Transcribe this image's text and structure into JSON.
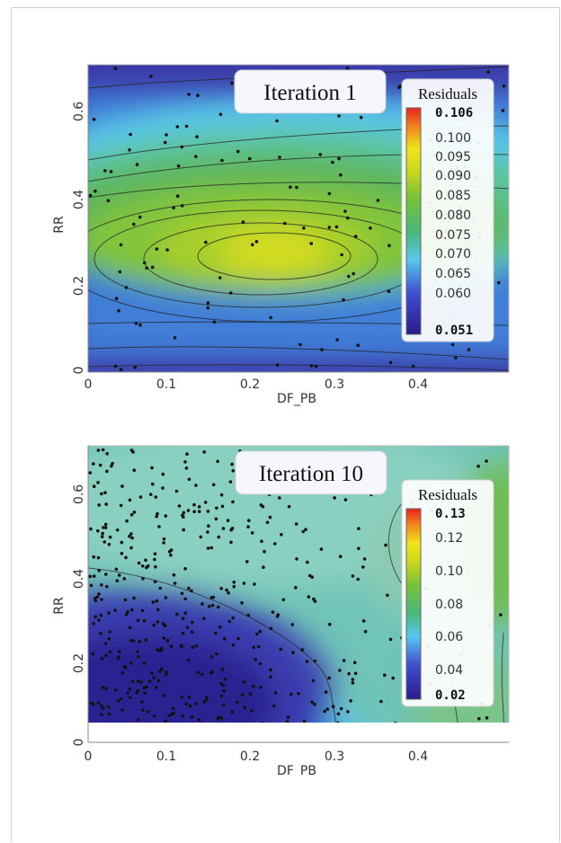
{
  "chart_data": [
    {
      "type": "heatmap",
      "title": "Iteration 1",
      "xlabel": "DF_PB",
      "ylabel": "RR",
      "xlim": [
        0,
        0.5
      ],
      "ylim": [
        0,
        0.7
      ],
      "x_ticks": [
        "0",
        "0.1",
        "0.2",
        "0.3",
        "0.4"
      ],
      "y_ticks": [
        "0",
        "0.2",
        "0.4",
        "0.6"
      ],
      "colorbar": {
        "title": "Residuals",
        "min_label": "0.051",
        "max_label": "0.106",
        "min": 0.051,
        "max": 0.106,
        "ticks": [
          "0.100",
          "0.095",
          "0.090",
          "0.085",
          "0.080",
          "0.075",
          "0.070",
          "0.065",
          "0.060"
        ]
      },
      "peak": {
        "x": 0.23,
        "y": 0.27
      }
    },
    {
      "type": "heatmap",
      "title": "Iteration 10",
      "xlabel": "DF_PB",
      "ylabel": "RR",
      "xlim": [
        0,
        0.5
      ],
      "ylim": [
        0,
        0.7
      ],
      "x_ticks": [
        "0",
        "0.1",
        "0.2",
        "0.3",
        "0.4"
      ],
      "y_ticks": [
        "0",
        "0.2",
        "0.4",
        "0.6"
      ],
      "colorbar": {
        "title": "Residuals",
        "min_label": "0.02",
        "max_label": "0.13",
        "min": 0.02,
        "max": 0.13,
        "ticks": [
          "0.12",
          "0.10",
          "0.08",
          "0.06",
          "0.04"
        ]
      }
    }
  ]
}
